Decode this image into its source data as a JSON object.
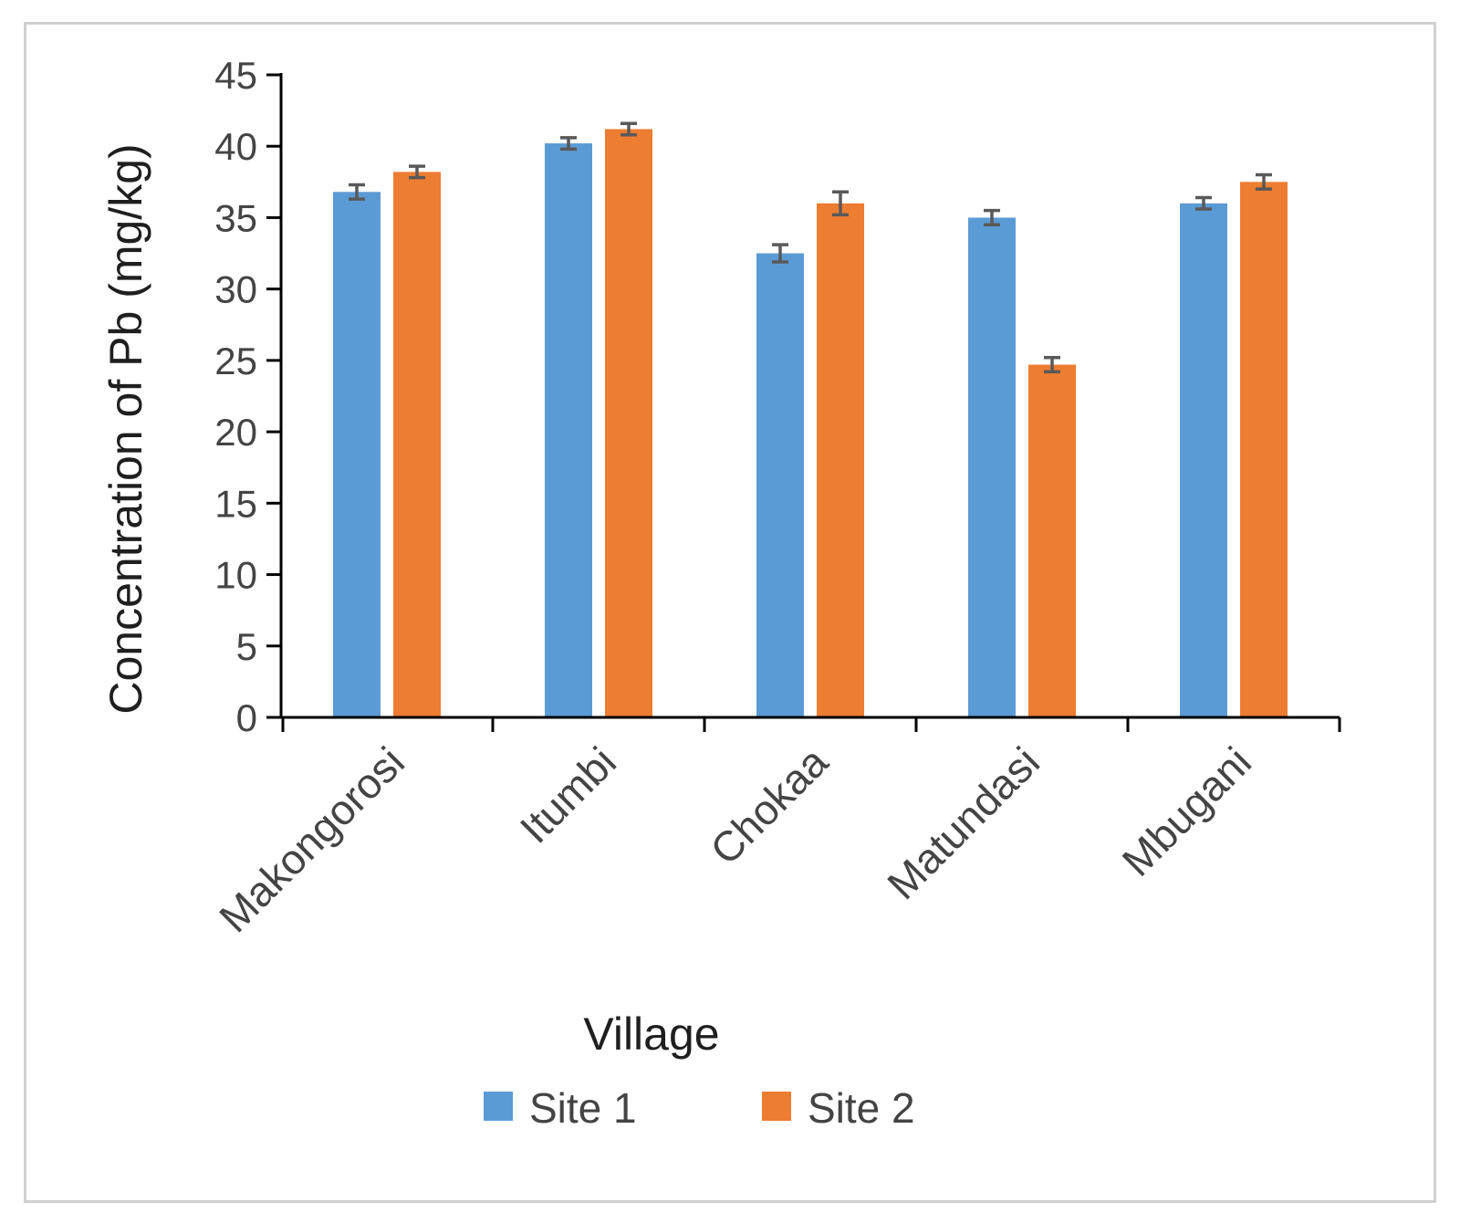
{
  "chart_data": {
    "type": "bar",
    "categories": [
      "Makongorosi",
      "Itumbi",
      "Chokaa",
      "Matundasi",
      "Mbugani"
    ],
    "series": [
      {
        "name": "Site 1",
        "color": "#5b9bd5",
        "values": [
          36.8,
          40.2,
          32.5,
          35.0,
          36.0
        ],
        "errors": [
          0.5,
          0.4,
          0.6,
          0.5,
          0.4
        ]
      },
      {
        "name": "Site 2",
        "color": "#ed7d31",
        "values": [
          38.2,
          41.2,
          36.0,
          24.7,
          37.5
        ],
        "errors": [
          0.4,
          0.4,
          0.8,
          0.5,
          0.5
        ]
      }
    ],
    "xlabel": "Village",
    "ylabel": "Concentration of Pb (mg/kg)",
    "ylim": [
      0,
      45
    ],
    "yticks": [
      0,
      5,
      10,
      15,
      20,
      25,
      30,
      35,
      40,
      45
    ],
    "grid": false,
    "legend": "bottom",
    "error_bars": true
  }
}
